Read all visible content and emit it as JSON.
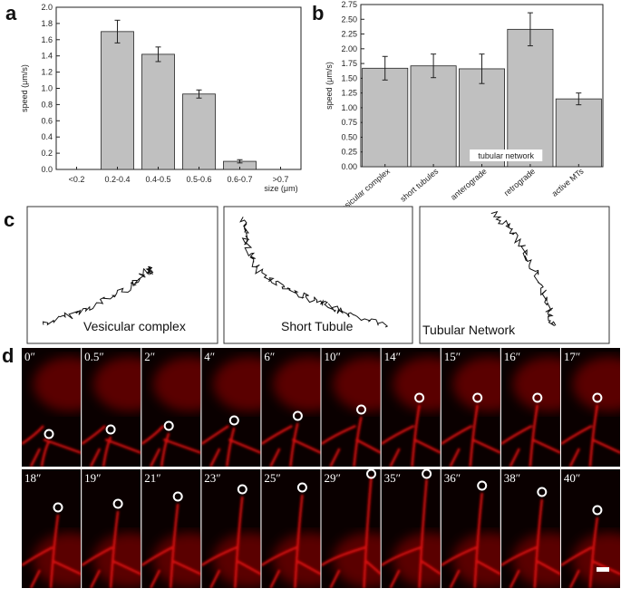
{
  "panel_labels": [
    "a",
    "b",
    "c",
    "d"
  ],
  "chart_data": [
    {
      "type": "bar",
      "categories": [
        "<0.2",
        "0.2-0.4",
        "0.4-0.5",
        "0.5-0.6",
        "0.6-0.7",
        ">0.7"
      ],
      "values": [
        0,
        1.7,
        1.42,
        0.93,
        0.1,
        0
      ],
      "errors": [
        0,
        0.14,
        0.09,
        0.05,
        0.02,
        0
      ],
      "color": "#c0c0c0",
      "ylim": [
        0,
        2
      ],
      "yticks": [
        {
          "value": 0,
          "label": "0.0"
        },
        {
          "value": 0.2,
          "label": "0.2"
        },
        {
          "value": 0.4,
          "label": "0.4"
        },
        {
          "value": 0.6,
          "label": "0.6"
        },
        {
          "value": 0.8,
          "label": "0.8"
        },
        {
          "value": 1,
          "label": "1.0"
        },
        {
          "value": 1.2,
          "label": "1.2"
        },
        {
          "value": 1.4,
          "label": "1.4"
        },
        {
          "value": 1.6,
          "label": "1.6"
        },
        {
          "value": 1.8,
          "label": "1.8"
        },
        {
          "value": 2,
          "label": "2.0"
        }
      ],
      "y_label": "speed (μm/s)",
      "x_label": "size (μm)"
    },
    {
      "type": "bar",
      "categories": [
        "vesicular complex",
        "short tubules",
        "anterograde",
        "retrograde",
        "active MTs"
      ],
      "values": [
        1.67,
        1.71,
        1.66,
        2.33,
        1.15
      ],
      "errors": [
        0.2,
        0.2,
        0.25,
        0.28,
        0.1
      ],
      "color": "#c0c0c0",
      "ylim": [
        0,
        2.75
      ],
      "yticks": [
        {
          "value": 0,
          "label": "0.00"
        },
        {
          "value": 0.25,
          "label": "0.25"
        },
        {
          "value": 0.5,
          "label": "0.50"
        },
        {
          "value": 0.75,
          "label": "0.75"
        },
        {
          "value": 1,
          "label": "1.00"
        },
        {
          "value": 1.25,
          "label": "1.25"
        },
        {
          "value": 1.5,
          "label": "1.50"
        },
        {
          "value": 1.75,
          "label": "1.75"
        },
        {
          "value": 2,
          "label": "2.00"
        },
        {
          "value": 2.25,
          "label": "2.25"
        },
        {
          "value": 2.5,
          "label": "2.50"
        },
        {
          "value": 2.75,
          "label": "2.75"
        }
      ],
      "y_label": "speed (μm/s)",
      "annotation": "tubular network"
    }
  ],
  "trajectories": {
    "labels": [
      "Vesicular complex",
      "Short Tubule",
      "Tubular Network"
    ]
  },
  "frames": {
    "times": [
      [
        "0″",
        "0.5″",
        "2″",
        "4″",
        "6″",
        "10″",
        "14″",
        "15″",
        "16″",
        "17″"
      ],
      [
        "18″",
        "19″",
        "21″",
        "23″",
        "25″",
        "29″",
        "35″",
        "36″",
        "38″",
        "40″"
      ]
    ]
  }
}
